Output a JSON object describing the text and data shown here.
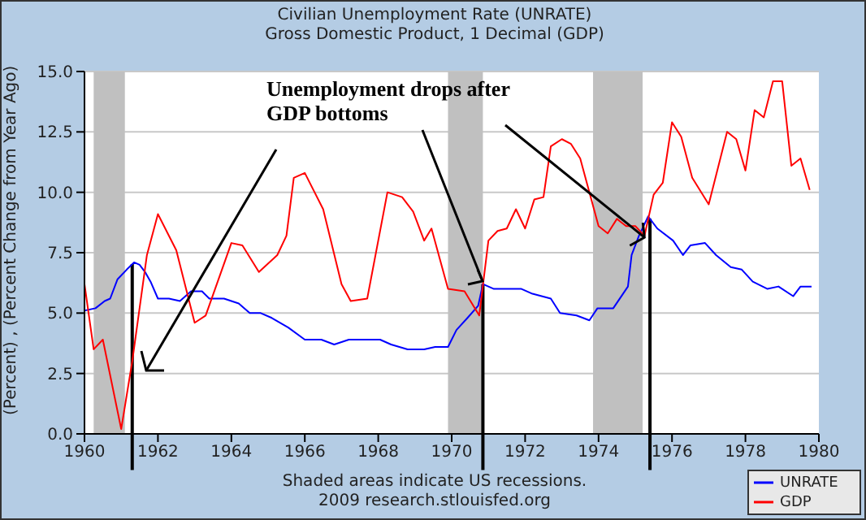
{
  "chart_data": {
    "type": "line",
    "title": "Civilian Unemployment Rate (UNRATE)",
    "subtitle": "Gross Domestic Product, 1 Decimal (GDP)",
    "ylabel": "(Percent) , (Percent Change from Year Ago)",
    "annotations": [
      {
        "text": "Unemployment drops after GDP bottoms",
        "x": 1975.25,
        "y": 8.2
      },
      "Shaded areas indicate US recessions.",
      "2009 research.stlouisfed.org"
    ],
    "series": [
      {
        "name": "UNRATE",
        "color": "#0000ff",
        "x": [
          1960.0,
          1960.3,
          1960.55,
          1960.7,
          1960.9,
          1961.15,
          1961.35,
          1961.5,
          1961.65,
          1961.8,
          1962.0,
          1962.3,
          1962.6,
          1962.9,
          1963.2,
          1963.4,
          1963.8,
          1964.2,
          1964.5,
          1964.8,
          1965.1,
          1965.55,
          1966.0,
          1966.45,
          1966.8,
          1967.2,
          1967.6,
          1968.05,
          1968.35,
          1968.8,
          1969.25,
          1969.55,
          1969.9,
          1970.13,
          1970.43,
          1970.72,
          1970.85,
          1971.15,
          1971.6,
          1971.9,
          1972.2,
          1972.7,
          1972.95,
          1973.4,
          1973.75,
          1973.97,
          1974.4,
          1974.8,
          1974.9,
          1975.1,
          1975.35,
          1975.6,
          1976.03,
          1976.3,
          1976.5,
          1976.9,
          1977.2,
          1977.6,
          1977.9,
          1978.2,
          1978.6,
          1978.9,
          1979.3,
          1979.5,
          1979.8
        ],
        "values": [
          5.1,
          5.2,
          5.5,
          5.6,
          6.4,
          6.8,
          7.1,
          7.0,
          6.7,
          6.3,
          5.6,
          5.6,
          5.5,
          5.9,
          5.9,
          5.6,
          5.6,
          5.4,
          5.0,
          5.0,
          4.8,
          4.4,
          3.9,
          3.9,
          3.7,
          3.9,
          3.9,
          3.9,
          3.7,
          3.5,
          3.5,
          3.6,
          3.6,
          4.3,
          4.8,
          5.3,
          6.2,
          6.0,
          6.0,
          6.0,
          5.8,
          5.6,
          5.0,
          4.9,
          4.7,
          5.2,
          5.2,
          6.1,
          7.4,
          8.2,
          9.0,
          8.5,
          8.0,
          7.4,
          7.8,
          7.9,
          7.4,
          6.9,
          6.8,
          6.3,
          6.0,
          6.1,
          5.7,
          6.1,
          6.1
        ]
      },
      {
        "name": "GDP",
        "color": "#ff0000",
        "x": [
          1960.0,
          1960.25,
          1960.5,
          1961.0,
          1961.3,
          1961.7,
          1962.0,
          1962.5,
          1963.0,
          1963.3,
          1964.0,
          1964.3,
          1964.75,
          1965.25,
          1965.5,
          1965.7,
          1966.0,
          1966.5,
          1967.0,
          1967.25,
          1967.7,
          1968.25,
          1968.65,
          1968.95,
          1969.25,
          1969.45,
          1969.9,
          1970.35,
          1970.75,
          1971.0,
          1971.25,
          1971.5,
          1971.75,
          1972.0,
          1972.25,
          1972.5,
          1972.7,
          1973.0,
          1973.25,
          1973.5,
          1974.0,
          1974.25,
          1974.5,
          1974.75,
          1975.0,
          1975.25,
          1975.5,
          1975.75,
          1976.0,
          1976.25,
          1976.55,
          1977.0,
          1977.5,
          1977.75,
          1978.0,
          1978.25,
          1978.5,
          1978.75,
          1979.0,
          1979.25,
          1979.5,
          1979.75
        ],
        "values": [
          6.2,
          3.5,
          3.9,
          0.2,
          3.0,
          7.4,
          9.1,
          7.6,
          4.6,
          4.9,
          7.9,
          7.8,
          6.7,
          7.4,
          8.2,
          10.6,
          10.8,
          9.3,
          6.2,
          5.5,
          5.6,
          10.0,
          9.8,
          9.2,
          8.0,
          8.5,
          6.0,
          5.9,
          4.9,
          8.0,
          8.4,
          8.5,
          9.3,
          8.5,
          9.7,
          9.8,
          11.9,
          12.2,
          12.0,
          11.4,
          8.6,
          8.3,
          8.9,
          8.6,
          8.6,
          8.2,
          9.9,
          10.4,
          12.9,
          12.3,
          10.6,
          9.5,
          12.5,
          12.2,
          10.9,
          13.4,
          13.1,
          14.6,
          14.6,
          11.1,
          11.4,
          10.1
        ]
      }
    ],
    "xlim": [
      1960,
      1980
    ],
    "xticks": [
      1960,
      1962,
      1964,
      1966,
      1968,
      1970,
      1972,
      1974,
      1976,
      1978,
      1980
    ],
    "ylim": [
      0,
      15
    ],
    "yticks": [
      {
        "value": 0,
        "label": "0.0"
      },
      {
        "value": 2.5,
        "label": "2.5"
      },
      {
        "value": 5,
        "label": "5.0"
      },
      {
        "value": 7.5,
        "label": "7.5"
      },
      {
        "value": 10,
        "label": "10.0"
      },
      {
        "value": 12.5,
        "label": "12.5"
      },
      {
        "value": 15,
        "label": "15.0"
      }
    ],
    "bands": [
      {
        "axis": "x",
        "from": 1960.25,
        "to": 1961.1,
        "color": "#c0c0c0"
      },
      {
        "axis": "x",
        "from": 1969.9,
        "to": 1970.85,
        "color": "#c0c0c0"
      },
      {
        "axis": "x",
        "from": 1973.85,
        "to": 1975.2,
        "color": "#c0c0c0"
      }
    ],
    "ref_lines": [
      {
        "axis": "x",
        "value": 1961.3,
        "color": "#000000"
      },
      {
        "axis": "x",
        "value": 1970.85,
        "color": "#000000"
      },
      {
        "axis": "x",
        "value": 1975.4,
        "color": "#000000"
      }
    ],
    "grid": "y",
    "legend": "bottom right",
    "marker": "none",
    "line_style": "solid"
  }
}
